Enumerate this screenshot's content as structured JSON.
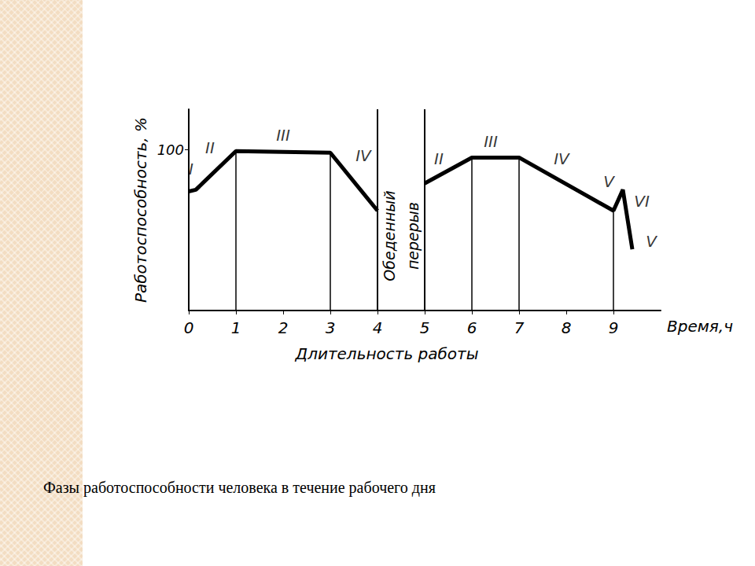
{
  "chart_data": {
    "type": "line",
    "caption": "Фазы работоспособности человека в течение рабочего дня",
    "xlabel": "Длительность работы",
    "xunit": "Время,ч",
    "ylabel": "Работоспособность, %",
    "xlim": [
      0,
      10
    ],
    "xticks": [
      0,
      1,
      2,
      3,
      4,
      5,
      6,
      7,
      8,
      9
    ],
    "ylim": [
      0,
      125
    ],
    "yticks": [
      100
    ],
    "grid": false,
    "color": "#000000",
    "x": [
      0,
      0.15,
      1,
      3,
      4,
      4.5,
      5,
      6,
      7,
      9,
      9.2,
      9.4
    ],
    "values": [
      74,
      75,
      99,
      98,
      62,
      null,
      79,
      95,
      95,
      62,
      75,
      38
    ],
    "phase_boundaries": [
      0,
      1,
      3,
      6,
      7,
      9
    ],
    "break": {
      "start": 4,
      "end": 5,
      "labels": [
        "Обеденный",
        "перерыв"
      ]
    },
    "annotations": [
      {
        "text": "I",
        "x": 0.05,
        "y": 88
      },
      {
        "text": "II",
        "x": 0.45,
        "y": 101
      },
      {
        "text": "III",
        "x": 2.0,
        "y": 109
      },
      {
        "text": "IV",
        "x": 3.7,
        "y": 96
      },
      {
        "text": "II",
        "x": 5.3,
        "y": 94
      },
      {
        "text": "III",
        "x": 6.4,
        "y": 105
      },
      {
        "text": "IV",
        "x": 7.9,
        "y": 94
      },
      {
        "text": "V",
        "x": 8.9,
        "y": 80
      },
      {
        "text": "VI",
        "x": 9.6,
        "y": 68
      },
      {
        "text": "V",
        "x": 9.8,
        "y": 43
      }
    ]
  }
}
